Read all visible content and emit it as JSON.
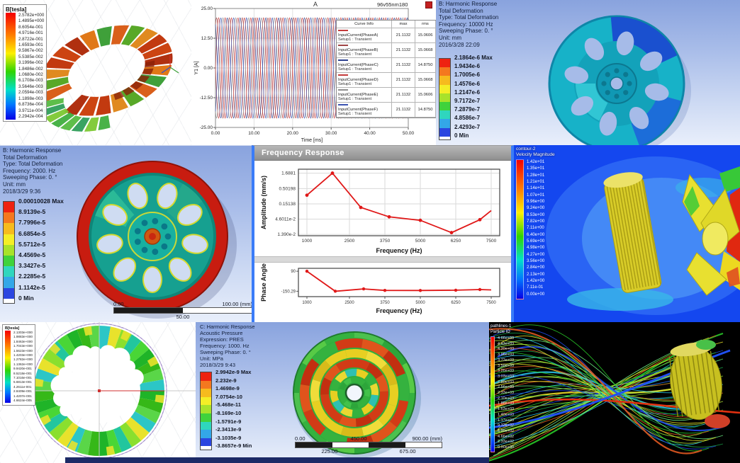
{
  "colors": {
    "bands": [
      "#ee2211",
      "#f4781f",
      "#f6bb1e",
      "#f4ee27",
      "#a8e22b",
      "#3fd23c",
      "#2fd6be",
      "#33a7e8",
      "#2b46e0"
    ],
    "accent_blue": "#3a7cf8",
    "cfd_background": "#1447ef",
    "pathlines_background": "#000000"
  },
  "panels": {
    "coil": {
      "legend_title": "B[tesla]",
      "values": [
        "2.5782e+000",
        "1.4895e+000",
        "8.6054e-001",
        "4.9716e-001",
        "2.8722e-001",
        "1.6593e-001",
        "9.5867e-002",
        "5.5385e-002",
        "3.1996e-002",
        "1.8486e-002",
        "1.0680e-002",
        "6.1708e-003",
        "3.5646e-003",
        "2.0594e-003",
        "1.1898e-003",
        "6.8736e-004",
        "3.9711e-004",
        "2.2942e-004"
      ]
    },
    "current_plot": {
      "corner_label": "A",
      "window_label": "96v55nm180",
      "table": {
        "headers": [
          "Curve Info",
          "max",
          "rms"
        ],
        "rows": [
          {
            "label": "InputCurrent(PhaseA)",
            "sub": "Setup1 : Transient",
            "max": "21.1132",
            "rms": "15.0606",
            "color": "#c43a3a"
          },
          {
            "label": "InputCurrent(PhaseB)",
            "sub": "Setup1 : Transient",
            "max": "21.1132",
            "rms": "15.0668",
            "color": "#a04545"
          },
          {
            "label": "InputCurrent(PhaseC)",
            "sub": "Setup1 : Transient",
            "max": "21.1132",
            "rms": "14.8750",
            "color": "#2b3f8e"
          },
          {
            "label": "InputCurrent(PhaseD)",
            "sub": "Setup1 : Transient",
            "max": "21.1132",
            "rms": "15.0668",
            "color": "#c43a3a"
          },
          {
            "label": "InputCurrent(PhaseE)",
            "sub": "Setup1 : Transient",
            "max": "21.1132",
            "rms": "15.0606",
            "color": "#8f8f8f"
          },
          {
            "label": "InputCurrent(PhaseF)",
            "sub": "Setup1 : Transient",
            "max": "21.1132",
            "rms": "14.8750",
            "color": "#3a52b0"
          }
        ]
      }
    },
    "deform_sm": {
      "header": [
        "B: Harmonic Response",
        "Total Deformation",
        "Type: Total Deformation",
        "Frequency: 10000 Hz",
        "Sweeping Phase: 0. °",
        "Unit: mm",
        "2016/3/28 22:09"
      ],
      "legend": [
        "2.1864e-6 Max",
        "1.9434e-6",
        "1.7005e-6",
        "1.4576e-6",
        "1.2147e-6",
        "9.7172e-7",
        "7.2879e-7",
        "4.8586e-7",
        "2.4293e-7",
        "0 Min"
      ]
    },
    "deform_lg": {
      "header": [
        "B: Harmonic Response",
        "Total Deformation",
        "Type: Total Deformation",
        "Frequency: 2000. Hz",
        "Sweeping Phase: 0. °",
        "Unit: mm",
        "2018/3/29 9:36"
      ],
      "legend": [
        "0.00010028 Max",
        "8.9139e-5",
        "7.7996e-5",
        "6.6854e-5",
        "5.5712e-5",
        "4.4569e-5",
        "3.3427e-5",
        "2.2285e-5",
        "1.1142e-5",
        "0 Min"
      ],
      "scale": {
        "left": "0.00",
        "right": "100.00 (mm)",
        "mid": "50.00"
      }
    },
    "freq_response": {
      "title": "Frequency Response"
    },
    "velocity": {
      "title_lines": [
        "contour-2",
        "Velocity Magnitude"
      ],
      "values": [
        "1.42e+01",
        "1.35e+01",
        "1.28e+01",
        "1.21e+01",
        "1.14e+01",
        "1.07e+01",
        "9.96e+00",
        "9.24e+00",
        "8.53e+00",
        "7.82e+00",
        "7.11e+00",
        "6.40e+00",
        "5.69e+00",
        "4.98e+00",
        "4.27e+00",
        "3.56e+00",
        "2.84e+00",
        "2.13e+00",
        "1.42e+00",
        "7.11e-01",
        "0.00e+00"
      ]
    },
    "stator": {
      "legend_title": "B[tesla]",
      "values": [
        "2.1303e+000",
        "1.9883e+000",
        "1.8463e+000",
        "1.7043e+000",
        "1.5623e+000",
        "1.4203e+000",
        "1.2782e+000",
        "1.1362e+000",
        "9.9420e-001",
        "8.5218e-001",
        "7.1016e-001",
        "5.6813e-001",
        "4.2611e-001",
        "2.8409e-001",
        "1.4207e-001",
        "4.6624e-005"
      ]
    },
    "acoustic": {
      "header": [
        "C: Harmonic Response",
        "Acoustic Pressure",
        "Expression: PRES",
        "Frequency: 1000. Hz",
        "Sweeping Phase: 0. °",
        "Unit: MPa",
        "2018/3/29 9:43"
      ],
      "legend": [
        "2.9942e-9 Max",
        "2.232e-9",
        "1.4698e-9",
        "7.0754e-10",
        "-5.468e-11",
        "-8.169e-10",
        "-1.5791e-9",
        "-2.3413e-9",
        "-3.1035e-9",
        "-3.8657e-9 Min"
      ],
      "scale": {
        "left": "0.00",
        "mid": "450.00",
        "right": "900.00 (mm)",
        "q1": "225.00",
        "q3": "675.00"
      }
    },
    "pathlines": {
      "title_lines": [
        "pathlines-1",
        "Particle ID"
      ],
      "values": [
        "4.66e+03",
        "4.43e+03",
        "4.20e+03",
        "3.96e+03",
        "3.73e+03",
        "3.50e+03",
        "3.26e+03",
        "3.03e+03",
        "2.80e+03",
        "2.56e+03",
        "2.33e+03",
        "2.10e+03",
        "1.86e+03",
        "1.63e+03",
        "1.40e+03",
        "1.17e+03",
        "9.32e+02",
        "6.99e+02",
        "4.66e+02",
        "2.33e+02",
        "0.00e+00"
      ]
    }
  },
  "chart_data": [
    {
      "type": "line",
      "title": "A — 96v55nm180 input currents",
      "xlabel": "Time [ms]",
      "ylabel": "Y1 [A]",
      "xlim": [
        0,
        50
      ],
      "ylim": [
        -25,
        25
      ],
      "xticks": [
        0,
        10,
        20,
        30,
        40,
        50
      ],
      "xtick_labels": [
        "0.00",
        "10.00",
        "20.00",
        "30.00",
        "40.00",
        "50.00"
      ],
      "yticks": [
        25,
        12.5,
        0,
        -12.5,
        -25
      ],
      "ytick_labels": [
        "25.00",
        "12.50",
        "0.00",
        "-12.50",
        "-25.00"
      ],
      "grid": true,
      "legend_position": "right-table",
      "series": [
        {
          "name": "InputCurrent(PhaseA)",
          "waveform": "sine",
          "amplitude": 21.1132,
          "period_ms": 3.333,
          "phase_deg": 0,
          "color": "#c43a3a"
        },
        {
          "name": "InputCurrent(PhaseB)",
          "waveform": "sine",
          "amplitude": 21.1132,
          "period_ms": 3.333,
          "phase_deg": 60,
          "color": "#a04545"
        },
        {
          "name": "InputCurrent(PhaseC)",
          "waveform": "sine",
          "amplitude": 21.1132,
          "period_ms": 3.333,
          "phase_deg": 120,
          "color": "#2b3f8e"
        },
        {
          "name": "InputCurrent(PhaseD)",
          "waveform": "sine",
          "amplitude": 21.1132,
          "period_ms": 3.333,
          "phase_deg": 180,
          "color": "#c43a3a"
        },
        {
          "name": "InputCurrent(PhaseE)",
          "waveform": "sine",
          "amplitude": 21.1132,
          "period_ms": 3.333,
          "phase_deg": 240,
          "color": "#8f8f8f"
        },
        {
          "name": "InputCurrent(PhaseF)",
          "waveform": "sine",
          "amplitude": 21.1132,
          "period_ms": 3.333,
          "phase_deg": 300,
          "color": "#3a52b0"
        }
      ]
    },
    {
      "type": "line",
      "title": "Frequency Response — Amplitude",
      "xlabel": "Frequency (Hz)",
      "ylabel": "Amplitude (mm/s)",
      "yscale": "log",
      "x": [
        1000,
        1900,
        2900,
        3900,
        5000,
        6100,
        7100,
        7500
      ],
      "y": [
        0.3,
        1.6881,
        0.115,
        0.055,
        0.042,
        0.016,
        0.044,
        0.09
      ],
      "xticks": [
        1000,
        2500,
        3750,
        5000,
        6250,
        7500
      ],
      "xtick_labels": [
        "1000",
        "2500",
        "3750",
        "5000",
        "6250",
        "7500"
      ],
      "yticks": [
        1.6881,
        0.50198,
        0.15138,
        0.046011,
        0.0139
      ],
      "ytick_labels": [
        "1.6881",
        "0.50198",
        "0.15138",
        "4.6011e-2",
        "1.390e-2"
      ],
      "grid": true,
      "color": "#e01818"
    },
    {
      "type": "line",
      "title": "Frequency Response — Phase Angle",
      "xlabel": "Frequency (Hz)",
      "ylabel": "Phase Angle",
      "x": [
        1000,
        2000,
        3000,
        3750,
        5000,
        6250,
        7100,
        7500
      ],
      "y": [
        90,
        -150,
        -122,
        -140,
        -141,
        -138,
        -130,
        -134
      ],
      "xticks": [
        1000,
        2500,
        3750,
        5000,
        6250,
        7500
      ],
      "xtick_labels": [
        "1000",
        "2500",
        "3750",
        "5000",
        "6250",
        "7500"
      ],
      "yticks": [
        90,
        -150.29
      ],
      "ytick_labels": [
        "90",
        "-150.29"
      ],
      "grid": false,
      "color": "#e01818"
    }
  ]
}
